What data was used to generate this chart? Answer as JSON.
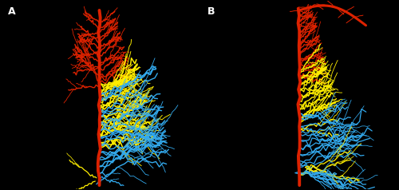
{
  "background_color": "#000000",
  "label_A": "A",
  "label_B": "B",
  "label_color": "#ffffff",
  "label_fontsize": 9,
  "fig_width": 5.0,
  "fig_height": 2.38,
  "dpi": 100,
  "colors": {
    "red": "#dd2200",
    "yellow": "#ffee00",
    "blue": "#33aaee"
  }
}
